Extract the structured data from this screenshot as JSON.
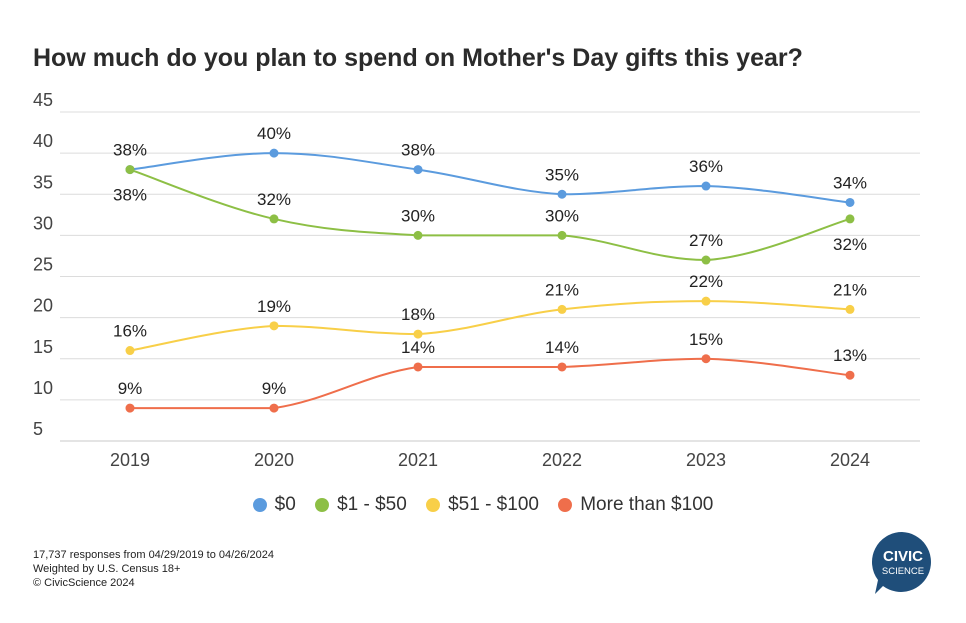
{
  "chart_data": {
    "type": "line",
    "title": "How much do you plan to spend on Mother's Day gifts this year?",
    "categories": [
      "2019",
      "2020",
      "2021",
      "2022",
      "2023",
      "2024"
    ],
    "ylim": [
      5,
      45
    ],
    "yticks": [
      5,
      10,
      15,
      20,
      25,
      30,
      35,
      40,
      45
    ],
    "grid": true,
    "legend_position": "bottom",
    "series": [
      {
        "name": "$0",
        "color": "#5b9bde",
        "values": [
          38,
          40,
          38,
          35,
          36,
          34
        ],
        "labels": [
          "38%",
          "40%",
          "38%",
          "35%",
          "36%",
          "34%"
        ],
        "label_side": [
          "above",
          "above",
          "above",
          "above",
          "above",
          "above"
        ]
      },
      {
        "name": "$1 - $50",
        "color": "#8dbf45",
        "values": [
          38,
          32,
          30,
          30,
          27,
          32
        ],
        "labels": [
          "38%",
          "32%",
          "30%",
          "30%",
          "27%",
          "32%"
        ],
        "label_side": [
          "below",
          "above",
          "above",
          "above",
          "above",
          "below"
        ]
      },
      {
        "name": "$51 - $100",
        "color": "#f8cf48",
        "values": [
          16,
          19,
          18,
          21,
          22,
          21
        ],
        "labels": [
          "16%",
          "19%",
          "18%",
          "21%",
          "22%",
          "21%"
        ],
        "label_side": [
          "above",
          "above",
          "above",
          "above",
          "above",
          "above"
        ]
      },
      {
        "name": "More than $100",
        "color": "#ef6e4b",
        "values": [
          9,
          9,
          14,
          14,
          15,
          13
        ],
        "labels": [
          "9%",
          "9%",
          "14%",
          "14%",
          "15%",
          "13%"
        ],
        "label_side": [
          "above",
          "above",
          "above",
          "above",
          "above",
          "above"
        ]
      }
    ]
  },
  "footer": {
    "line1": "17,737 responses from 04/29/2019 to 04/26/2024",
    "line2": "Weighted by U.S. Census 18+",
    "line3": "© CivicScience 2024"
  },
  "logo": {
    "line1": "CIVIC",
    "line2": "SCIENCE",
    "color": "#1f4e7a"
  }
}
